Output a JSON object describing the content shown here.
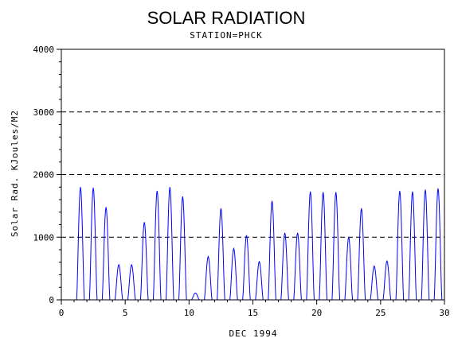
{
  "chart_data": {
    "type": "line",
    "title": "SOLAR RADIATION",
    "subtitle": "STATION=PHCK",
    "xlabel": "DEC 1994",
    "ylabel": "Solar Rad. KJoules/M2",
    "xlim": [
      0,
      30
    ],
    "ylim": [
      0,
      4000
    ],
    "x_ticks": [
      0,
      5,
      10,
      15,
      20,
      25,
      30
    ],
    "y_ticks": [
      0,
      1000,
      2000,
      3000,
      4000
    ],
    "grid": "horizontal-dashed",
    "series": [
      {
        "color": "#0000ff",
        "daily_peaks": [
          [
            1.5,
            1800
          ],
          [
            2.5,
            1790
          ],
          [
            3.5,
            1480
          ],
          [
            4.5,
            560
          ],
          [
            5.5,
            560
          ],
          [
            6.5,
            1240
          ],
          [
            7.5,
            1740
          ],
          [
            8.5,
            1800
          ],
          [
            9.5,
            1650
          ],
          [
            10.5,
            110
          ],
          [
            11.5,
            690
          ],
          [
            12.5,
            1460
          ],
          [
            13.5,
            820
          ],
          [
            14.5,
            1030
          ],
          [
            15.5,
            610
          ],
          [
            16.5,
            1580
          ],
          [
            17.5,
            1070
          ],
          [
            18.5,
            1070
          ],
          [
            19.5,
            1730
          ],
          [
            20.5,
            1720
          ],
          [
            21.5,
            1720
          ],
          [
            22.5,
            1000
          ],
          [
            23.5,
            1460
          ],
          [
            24.5,
            540
          ],
          [
            25.5,
            620
          ],
          [
            26.5,
            1740
          ],
          [
            27.5,
            1730
          ],
          [
            28.5,
            1760
          ],
          [
            29.5,
            1780
          ]
        ]
      }
    ]
  }
}
